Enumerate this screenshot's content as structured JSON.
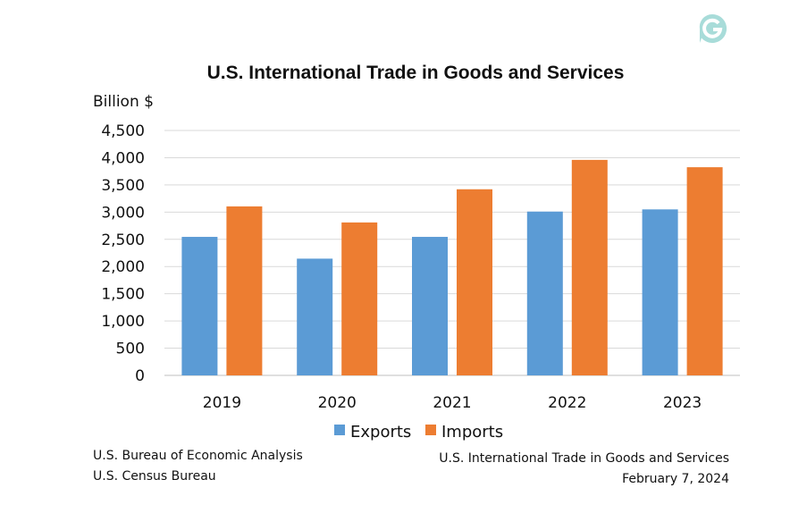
{
  "chart_data": {
    "type": "bar",
    "title": "U.S. International Trade in Goods and Services",
    "ylabel": "Billion $",
    "xlabel": "",
    "categories": [
      "2019",
      "2020",
      "2021",
      "2022",
      "2023"
    ],
    "series": [
      {
        "name": "Exports",
        "color": "#5b9bd5",
        "values": [
          2545,
          2145,
          2545,
          3010,
          3050
        ]
      },
      {
        "name": "Imports",
        "color": "#ed7d31",
        "values": [
          3105,
          2810,
          3420,
          3960,
          3825
        ]
      }
    ],
    "ylim": [
      0,
      4500
    ],
    "yticks": [
      0,
      500,
      1000,
      1500,
      2000,
      2500,
      3000,
      3500,
      4000,
      4500
    ],
    "ytick_labels": [
      "0",
      "500",
      "1,000",
      "1,500",
      "2,000",
      "2,500",
      "3,000",
      "3,500",
      "4,000",
      "4,500"
    ],
    "grid": true,
    "legend": "bottom"
  },
  "footer": {
    "source_line1": "U.S. Bureau of Economic Analysis",
    "source_line2": "U.S. Census Bureau",
    "release_title": "U.S. International Trade in Goods and Services",
    "release_date": "February 7, 2024"
  },
  "logo_icon": "g-logo-icon"
}
